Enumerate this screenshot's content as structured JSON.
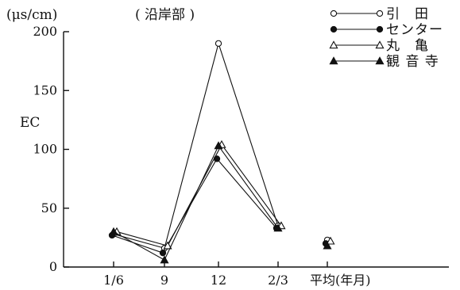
{
  "chart_data": {
    "type": "line",
    "unit": "(μs/cm)",
    "subtitle": "( 沿岸部 )",
    "ylabel": "EC",
    "xlabel": "",
    "ylim": [
      0,
      200
    ],
    "yticks": [
      "0",
      "50",
      "100",
      "150",
      "200"
    ],
    "categories": [
      "1/6",
      "9",
      "12",
      "2/3",
      "平均(年月)"
    ],
    "grid": false,
    "legend_position": "top-right",
    "series": [
      {
        "name": "引　田",
        "marker": "open-circle",
        "values": [
          28,
          16,
          190,
          35,
          23
        ]
      },
      {
        "name": "センター",
        "marker": "filled-circle",
        "values": [
          27,
          12,
          92,
          33,
          20
        ]
      },
      {
        "name": "丸　亀",
        "marker": "open-triangle",
        "values": [
          30,
          18,
          104,
          35,
          22
        ]
      },
      {
        "name": "観 音 寺",
        "marker": "filled-triangle",
        "values": [
          30,
          6,
          103,
          33,
          18
        ]
      }
    ]
  }
}
